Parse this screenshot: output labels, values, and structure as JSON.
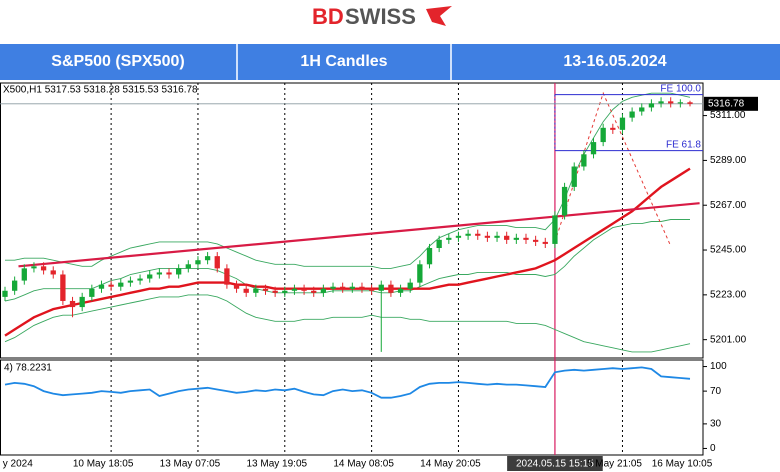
{
  "header": {
    "logo_bd": "BD",
    "logo_swiss": "SWISS",
    "cells": [
      "S&P500 (SPX500)",
      "1H Candles",
      "13-16.05.2024"
    ]
  },
  "chart_data": {
    "type": "candlestick",
    "info": "X500,H1  5317.53 5318.28 5315.53 5316.78",
    "categories": [
      null,
      null,
      "y 2024",
      null,
      null,
      null,
      null,
      null,
      null,
      null,
      null,
      "10 May 18:05",
      null,
      null,
      null,
      null,
      null,
      null,
      null,
      null,
      "13 May 07:05",
      null,
      null,
      null,
      null,
      null,
      null,
      null,
      null,
      "13 May 19:05",
      null,
      null,
      null,
      null,
      null,
      null,
      null,
      null,
      "14 May 08:05",
      null,
      null,
      null,
      null,
      null,
      null,
      null,
      null,
      "14 May 20:05",
      null,
      null,
      null,
      null,
      null,
      null,
      null,
      null,
      null,
      "2024.05.15 15:15",
      null,
      null,
      null,
      null,
      null,
      null,
      "5 May 21:05",
      null,
      null,
      null,
      null,
      null,
      null,
      "16 May 10:05"
    ],
    "open": [
      5222,
      5225,
      5230,
      5236,
      5237,
      5235,
      5233,
      5220,
      5217,
      5222,
      5226,
      5228,
      5227,
      5229,
      5230,
      5231,
      5233,
      5234,
      5233,
      5236,
      5238,
      5240,
      5242,
      5236,
      5228,
      5226,
      5224,
      5226,
      5225,
      5224,
      5225,
      5226,
      5225,
      5224,
      5226,
      5227,
      5226,
      5227,
      5226,
      5225,
      5228,
      5224,
      5226,
      5229,
      5238,
      5246,
      5250,
      5251,
      5252,
      5253,
      5252,
      5251,
      5252,
      5250,
      5251,
      5250,
      5249,
      5248,
      5262,
      5276,
      5286,
      5292,
      5298,
      5305,
      5304,
      5310,
      5313,
      5315,
      5317,
      5318,
      5317,
      5317.53
    ],
    "high": [
      5227,
      5232,
      5238,
      5239,
      5239,
      5237,
      5235,
      5222,
      5224,
      5228,
      5230,
      5230,
      5231,
      5232,
      5233,
      5235,
      5236,
      5236,
      5238,
      5240,
      5242,
      5244,
      5244,
      5238,
      5230,
      5228,
      5228,
      5228,
      5227,
      5227,
      5228,
      5228,
      5227,
      5228,
      5229,
      5229,
      5229,
      5229,
      5228,
      5230,
      5230,
      5228,
      5231,
      5240,
      5248,
      5252,
      5253,
      5254,
      5255,
      5255,
      5254,
      5254,
      5254,
      5253,
      5253,
      5252,
      5251,
      5264,
      5278,
      5288,
      5294,
      5300,
      5307,
      5307,
      5312,
      5315,
      5317,
      5319,
      5320,
      5320,
      5319,
      5318.28
    ],
    "low": [
      5220,
      5223,
      5228,
      5234,
      5233,
      5231,
      5218,
      5212,
      5215,
      5220,
      5224,
      5225,
      5225,
      5227,
      5228,
      5229,
      5231,
      5231,
      5231,
      5234,
      5236,
      5238,
      5234,
      5226,
      5224,
      5222,
      5222,
      5223,
      5222,
      5222,
      5223,
      5223,
      5222,
      5222,
      5224,
      5224,
      5224,
      5224,
      5223,
      5195,
      5222,
      5222,
      5224,
      5227,
      5236,
      5244,
      5248,
      5249,
      5250,
      5250,
      5249,
      5249,
      5248,
      5248,
      5248,
      5247,
      5246,
      5246,
      5260,
      5274,
      5284,
      5290,
      5296,
      5302,
      5302,
      5308,
      5311,
      5313,
      5315,
      5315,
      5315,
      5315.53
    ],
    "close": [
      5225,
      5230,
      5236,
      5237,
      5235,
      5233,
      5220,
      5217,
      5222,
      5226,
      5228,
      5227,
      5229,
      5230,
      5231,
      5233,
      5234,
      5233,
      5236,
      5238,
      5240,
      5242,
      5236,
      5228,
      5226,
      5224,
      5226,
      5225,
      5224,
      5225,
      5226,
      5225,
      5224,
      5226,
      5227,
      5226,
      5227,
      5226,
      5225,
      5228,
      5224,
      5226,
      5229,
      5238,
      5246,
      5250,
      5251,
      5252,
      5253,
      5252,
      5251,
      5252,
      5250,
      5251,
      5250,
      5249,
      5248,
      5262,
      5276,
      5286,
      5292,
      5298,
      5305,
      5304,
      5310,
      5313,
      5315,
      5317,
      5318,
      5317,
      5317.53,
      5316.78
    ],
    "up_color": "#15a838",
    "down_color": "#e3242b",
    "ylim": [
      5192,
      5327
    ],
    "yticks": [
      {
        "value": 5311,
        "label": "5311.00"
      },
      {
        "value": 5289,
        "label": "5289.00"
      },
      {
        "value": 5267,
        "label": "5267.00"
      },
      {
        "value": 5245,
        "label": "5245.00"
      },
      {
        "value": 5223,
        "label": "5223.00"
      },
      {
        "value": 5201,
        "label": "5201.00"
      }
    ],
    "x_grid": true,
    "moving_average": {
      "color": "#e0141e",
      "values": [
        5203,
        5206,
        5209,
        5212,
        5214,
        5216,
        5217,
        5218,
        5219,
        5220,
        5221,
        5222,
        5223,
        5224,
        5225,
        5226,
        5226,
        5227,
        5227,
        5228,
        5229,
        5229,
        5229,
        5229,
        5228,
        5228,
        5227,
        5227,
        5226,
        5226,
        5226,
        5226,
        5226,
        5226,
        5226,
        5226,
        5226,
        5226,
        5226,
        5226,
        5226,
        5226,
        5226,
        5226,
        5226,
        5227,
        5228,
        5228,
        5229,
        5230,
        5231,
        5232,
        5233,
        5234,
        5235,
        5236,
        5238,
        5240,
        5243,
        5246,
        5249,
        5252,
        5255,
        5258,
        5261,
        5264,
        5268,
        5272,
        5276,
        5279,
        5282,
        5285
      ]
    },
    "bands": {
      "color": "#3aa860",
      "lines": [
        [
          5240,
          5240,
          5241,
          5241,
          5241,
          5240,
          5239,
          5238,
          5237,
          5237,
          5240,
          5242,
          5244,
          5246,
          5247,
          5248,
          5249,
          5249,
          5249,
          5249,
          5249,
          5249,
          5248,
          5246,
          5244,
          5242,
          5240,
          5239,
          5238,
          5238,
          5238,
          5237,
          5237,
          5237,
          5237,
          5237,
          5237,
          5237,
          5237,
          5236,
          5236,
          5237,
          5238,
          5242,
          5247,
          5251,
          5253,
          5255,
          5256,
          5257,
          5257,
          5257,
          5257,
          5256,
          5256,
          5256,
          5255,
          5260,
          5270,
          5282,
          5292,
          5300,
          5308,
          5314,
          5318,
          5320,
          5321,
          5322,
          5322,
          5322,
          5321,
          5320
        ],
        [
          5220,
          5221,
          5223,
          5225,
          5226,
          5226,
          5226,
          5226,
          5226,
          5226,
          5228,
          5230,
          5231,
          5233,
          5234,
          5235,
          5236,
          5236,
          5236,
          5236,
          5236,
          5236,
          5235,
          5233,
          5231,
          5228,
          5226,
          5225,
          5224,
          5224,
          5224,
          5224,
          5224,
          5224,
          5225,
          5225,
          5225,
          5225,
          5225,
          5224,
          5224,
          5225,
          5225,
          5227,
          5229,
          5231,
          5232,
          5233,
          5233,
          5234,
          5234,
          5234,
          5234,
          5233,
          5233,
          5233,
          5232,
          5233,
          5237,
          5242,
          5246,
          5250,
          5253,
          5256,
          5257,
          5258,
          5258,
          5259,
          5259,
          5260,
          5260,
          5260
        ],
        [
          5200,
          5202,
          5205,
          5208,
          5210,
          5212,
          5213,
          5213,
          5214,
          5215,
          5216,
          5217,
          5218,
          5219,
          5220,
          5221,
          5222,
          5222,
          5222,
          5223,
          5223,
          5223,
          5222,
          5220,
          5217,
          5214,
          5212,
          5211,
          5210,
          5210,
          5210,
          5211,
          5211,
          5211,
          5212,
          5212,
          5212,
          5212,
          5213,
          5212,
          5212,
          5212,
          5211,
          5211,
          5210,
          5210,
          5210,
          5210,
          5210,
          5210,
          5210,
          5210,
          5210,
          5209,
          5209,
          5209,
          5208,
          5206,
          5204,
          5202,
          5200,
          5199,
          5198,
          5197,
          5196,
          5195,
          5195,
          5195,
          5196,
          5197,
          5198,
          5199
        ]
      ]
    },
    "trendline": {
      "color": "#d81b45",
      "x": [
        1.4,
        72
      ],
      "values": [
        5237,
        5268
      ]
    },
    "projection": {
      "color": "#e53935",
      "x": [
        57,
        62,
        69
      ],
      "values": [
        5249,
        5322,
        5247
      ]
    },
    "marker_line": {
      "color": "#d81b60",
      "x": 57
    },
    "fibo": {
      "color": "#2c2cd0",
      "x": 57,
      "levels": [
        {
          "value": 5321.3,
          "label": "FE 100.0"
        },
        {
          "value": 5293.8,
          "label": "FE 61.8"
        }
      ]
    },
    "indicator": {
      "label": "4) 78.2231",
      "color": "#1e88e5",
      "ylim": [
        -8,
        108
      ],
      "yticks": [
        100,
        70,
        30,
        0
      ],
      "values": [
        78,
        80,
        79,
        76,
        70,
        67,
        65,
        66,
        67,
        68,
        70,
        69,
        68,
        70,
        71,
        72,
        64,
        67,
        70,
        72,
        73,
        74,
        72,
        70,
        68,
        69,
        71,
        70,
        72,
        71,
        73,
        69,
        66,
        65,
        70,
        72,
        70,
        71,
        68,
        62,
        62,
        64,
        67,
        75,
        79,
        80,
        80,
        81,
        80,
        79,
        78,
        79,
        78,
        78,
        77,
        76,
        75,
        93,
        95,
        96,
        95,
        96,
        97,
        98,
        97,
        98,
        99,
        97,
        88,
        87,
        86,
        85
      ]
    }
  }
}
